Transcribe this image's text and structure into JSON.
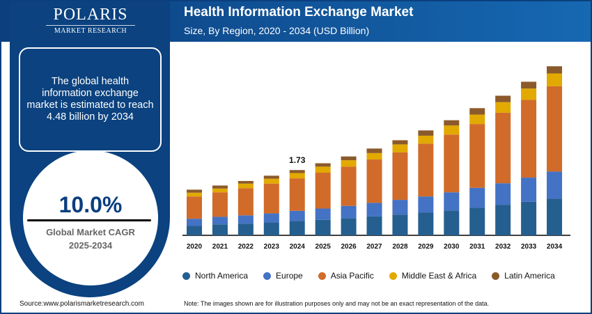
{
  "brand": {
    "name": "POLARIS",
    "tagline": "MARKET RESEARCH"
  },
  "header": {
    "title": "Health Information Exchange Market",
    "subtitle": "Size, By Region, 2020 - 2034 (USD Billion)"
  },
  "info": {
    "text": "The global health information exchange market is estimated to reach 4.48 billion by 2034",
    "cagr": "10.0%",
    "cagr_label": "Global Market CAGR",
    "cagr_period": "2025-2034"
  },
  "footer": {
    "source": "Source:www.polarismarketresearch.com",
    "note": "Note: The images shown are for illustration purposes only and may not be an exact representation of the data."
  },
  "chart_data": {
    "type": "bar",
    "stacked": true,
    "title": "Health Information Exchange Market",
    "subtitle": "Size, By Region, 2020 - 2034 (USD Billion)",
    "categories": [
      "2020",
      "2021",
      "2022",
      "2023",
      "2024",
      "2025",
      "2026",
      "2027",
      "2028",
      "2029",
      "2030",
      "2031",
      "2032",
      "2033",
      "2034"
    ],
    "annotations": [
      {
        "category": "2024",
        "label": "1.73"
      }
    ],
    "legend_position": "bottom",
    "grid": false,
    "series": [
      {
        "name": "North America",
        "color": "#245f8f",
        "values": [
          0.25,
          0.29,
          0.31,
          0.34,
          0.38,
          0.41,
          0.45,
          0.5,
          0.55,
          0.6,
          0.66,
          0.73,
          0.81,
          0.89,
          0.97
        ]
      },
      {
        "name": "Europe",
        "color": "#4472c4",
        "values": [
          0.19,
          0.2,
          0.22,
          0.24,
          0.27,
          0.3,
          0.33,
          0.36,
          0.39,
          0.43,
          0.48,
          0.53,
          0.57,
          0.64,
          0.72
        ]
      },
      {
        "name": "Asia Pacific",
        "color": "#d16b2a",
        "values": [
          0.59,
          0.65,
          0.72,
          0.79,
          0.86,
          0.95,
          1.04,
          1.15,
          1.26,
          1.4,
          1.53,
          1.69,
          1.87,
          2.06,
          2.26
        ]
      },
      {
        "name": "Middle East & Africa",
        "color": "#e2a900",
        "values": [
          0.1,
          0.1,
          0.12,
          0.13,
          0.14,
          0.16,
          0.17,
          0.17,
          0.21,
          0.21,
          0.24,
          0.25,
          0.28,
          0.3,
          0.34
        ]
      },
      {
        "name": "Latin America",
        "color": "#8b5a2b",
        "values": [
          0.08,
          0.08,
          0.07,
          0.08,
          0.08,
          0.09,
          0.1,
          0.12,
          0.11,
          0.14,
          0.14,
          0.17,
          0.17,
          0.18,
          0.19
        ]
      }
    ],
    "ylim": [
      0,
      4.6
    ]
  }
}
